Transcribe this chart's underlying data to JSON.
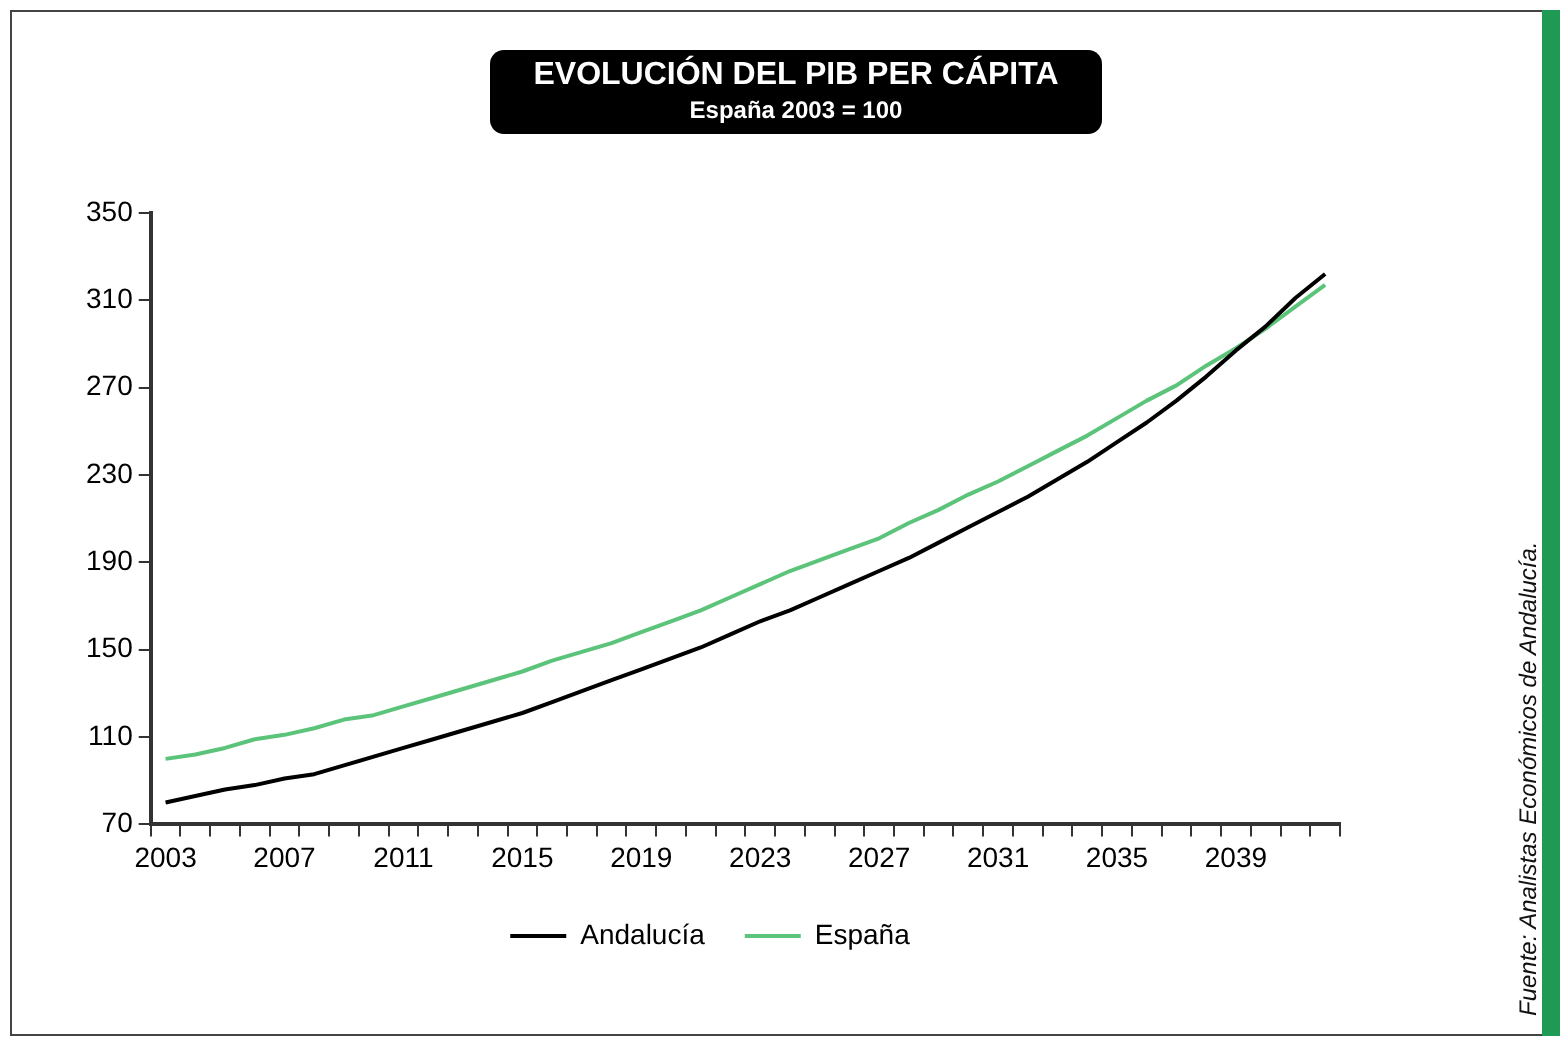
{
  "chart_data": {
    "type": "line",
    "title": "EVOLUCIÓN DEL PIB PER CÁPITA",
    "subtitle": "España 2003 = 100",
    "categories": [
      "2003",
      null,
      null,
      null,
      "2007",
      null,
      null,
      null,
      "2011",
      null,
      null,
      null,
      "2015",
      null,
      null,
      null,
      "2019",
      null,
      null,
      null,
      "2023",
      null,
      null,
      null,
      "2027",
      null,
      null,
      null,
      "2031",
      null,
      null,
      null,
      "2035",
      null,
      null,
      null,
      "2039",
      null,
      null,
      null
    ],
    "series": [
      {
        "name": "Andalucía",
        "color": "#000000",
        "values": [
          80,
          83,
          86,
          88,
          91,
          93,
          97,
          101,
          105,
          109,
          113,
          117,
          121,
          126,
          131,
          136,
          141,
          146,
          151,
          157,
          163,
          168,
          174,
          180,
          186,
          192,
          199,
          206,
          213,
          220,
          228,
          236,
          245,
          254,
          264,
          275,
          287,
          298,
          311,
          322
        ]
      },
      {
        "name": "España",
        "color": "#5cc47a",
        "values": [
          100,
          102,
          105,
          109,
          111,
          114,
          118,
          120,
          124,
          128,
          132,
          136,
          140,
          145,
          149,
          153,
          158,
          163,
          168,
          174,
          180,
          186,
          191,
          196,
          201,
          208,
          214,
          221,
          227,
          234,
          241,
          248,
          256,
          264,
          271,
          280,
          288,
          297,
          307,
          317
        ]
      }
    ],
    "ylim": [
      70,
      350
    ],
    "yticks": [
      70,
      110,
      150,
      190,
      230,
      270,
      310,
      350
    ],
    "grid": false,
    "legend": "bottom",
    "marker": "none",
    "line_style": "solid",
    "annotations": [
      "Fuente: Analistas Económicos de Andalucía."
    ]
  }
}
